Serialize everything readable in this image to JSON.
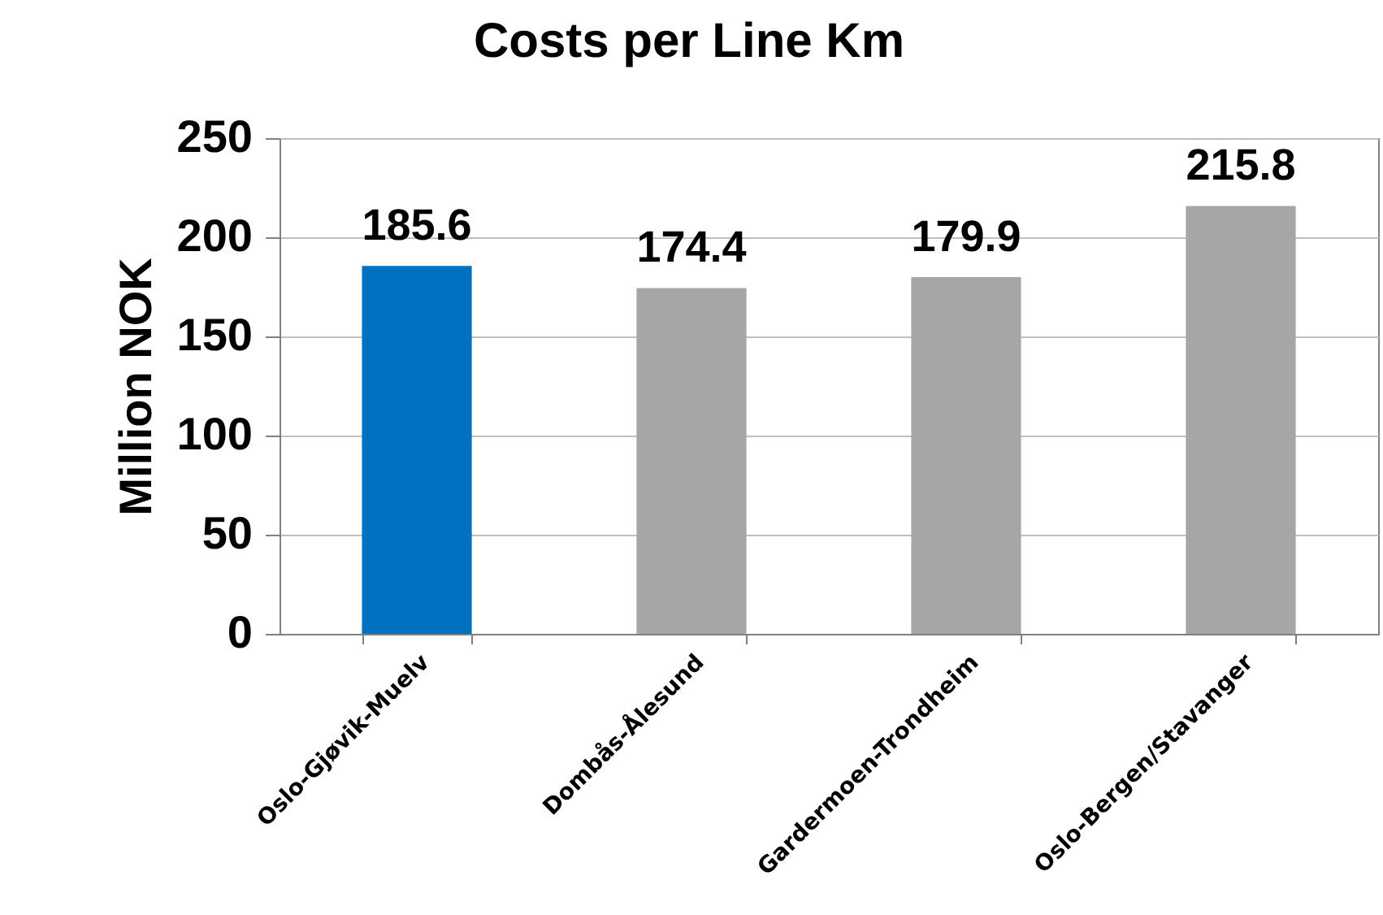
{
  "chart_data": {
    "type": "bar",
    "title": "Costs per Line Km",
    "ylabel": "Million NOK",
    "categories": [
      "Oslo-Gjøvik-Muelv",
      "Dombås-Ålesund",
      "Gardermoen-Trondheim",
      "Oslo-Bergen/Stavanger"
    ],
    "values": [
      185.6,
      174.4,
      179.9,
      215.8
    ],
    "colors": [
      "#0070c0",
      "#a6a6a6",
      "#a6a6a6",
      "#a6a6a6"
    ],
    "ylim": [
      0,
      250
    ],
    "yticks": [
      0,
      50,
      100,
      150,
      200,
      250
    ],
    "grid": "y",
    "data_labels": true
  }
}
